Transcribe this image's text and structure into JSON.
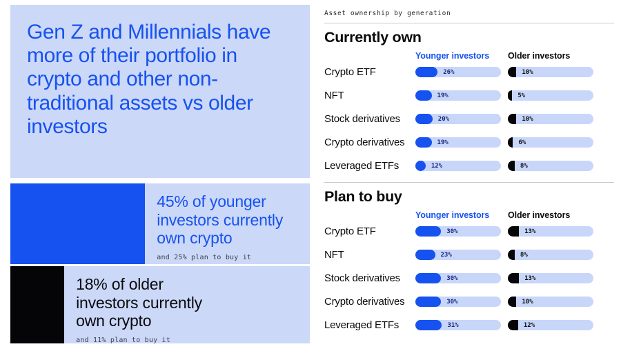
{
  "colors": {
    "accent_blue": "#1652F0",
    "panel_light_blue": "#CCD8F8",
    "bar_track_blue": "#C8D6FA",
    "ink_black": "#0A0B0D"
  },
  "left_panel": {
    "headline": "Gen Z and Millennials have more of their portfolio in crypto and other non-traditional assets vs older investors",
    "younger_highlight": {
      "stat": "45% of younger investors currently own crypto",
      "note": "and 25% plan to buy it",
      "bar_pct": 45
    },
    "older_highlight": {
      "stat": "18% of older investors currently own crypto",
      "note": "and 11% plan to buy it",
      "bar_pct": 18
    }
  },
  "right_panel": {
    "eyebrow": "Asset ownership by generation",
    "column_headers": {
      "younger": "Younger investors",
      "older": "Older investors"
    },
    "sections": [
      {
        "title": "Currently own",
        "rows": [
          {
            "label": "Crypto ETF",
            "younger": "26%",
            "older": "10%"
          },
          {
            "label": "NFT",
            "younger": "19%",
            "older": "5%"
          },
          {
            "label": "Stock derivatives",
            "younger": "20%",
            "older": "10%"
          },
          {
            "label": "Crypto derivatives",
            "younger": "19%",
            "older": "6%"
          },
          {
            "label": "Leveraged ETFs",
            "younger": "12%",
            "older": "8%"
          }
        ]
      },
      {
        "title": "Plan to buy",
        "rows": [
          {
            "label": "Crypto ETF",
            "younger": "30%",
            "older": "13%"
          },
          {
            "label": "NFT",
            "younger": "23%",
            "older": "8%"
          },
          {
            "label": "Stock derivatives",
            "younger": "30%",
            "older": "13%"
          },
          {
            "label": "Crypto derivatives",
            "younger": "30%",
            "older": "10%"
          },
          {
            "label": "Leveraged ETFs",
            "younger": "31%",
            "older": "12%"
          }
        ]
      }
    ]
  },
  "chart_data": [
    {
      "type": "bar",
      "orientation": "horizontal",
      "title": "Currently own",
      "categories": [
        "Crypto ETF",
        "NFT",
        "Stock derivatives",
        "Crypto derivatives",
        "Leveraged ETFs"
      ],
      "series": [
        {
          "name": "Younger investors",
          "values": [
            26,
            19,
            20,
            19,
            12
          ]
        },
        {
          "name": "Older investors",
          "values": [
            10,
            5,
            10,
            6,
            8
          ]
        }
      ],
      "unit": "percent",
      "xlim": [
        0,
        100
      ],
      "value_labels": true,
      "legend_position": "top",
      "grid": false
    },
    {
      "type": "bar",
      "orientation": "horizontal",
      "title": "Plan to buy",
      "categories": [
        "Crypto ETF",
        "NFT",
        "Stock derivatives",
        "Crypto derivatives",
        "Leveraged ETFs"
      ],
      "series": [
        {
          "name": "Younger investors",
          "values": [
            30,
            23,
            30,
            30,
            31
          ]
        },
        {
          "name": "Older investors",
          "values": [
            13,
            8,
            13,
            10,
            12
          ]
        }
      ],
      "unit": "percent",
      "xlim": [
        0,
        100
      ],
      "value_labels": true,
      "legend_position": "top",
      "grid": false
    },
    {
      "type": "bar",
      "orientation": "horizontal",
      "title": "Crypto ownership highlights",
      "categories": [
        "Younger investors currently own crypto",
        "Younger investors plan to buy crypto",
        "Older investors currently own crypto",
        "Older investors plan to buy crypto"
      ],
      "values": [
        45,
        25,
        18,
        11
      ],
      "unit": "percent"
    }
  ]
}
